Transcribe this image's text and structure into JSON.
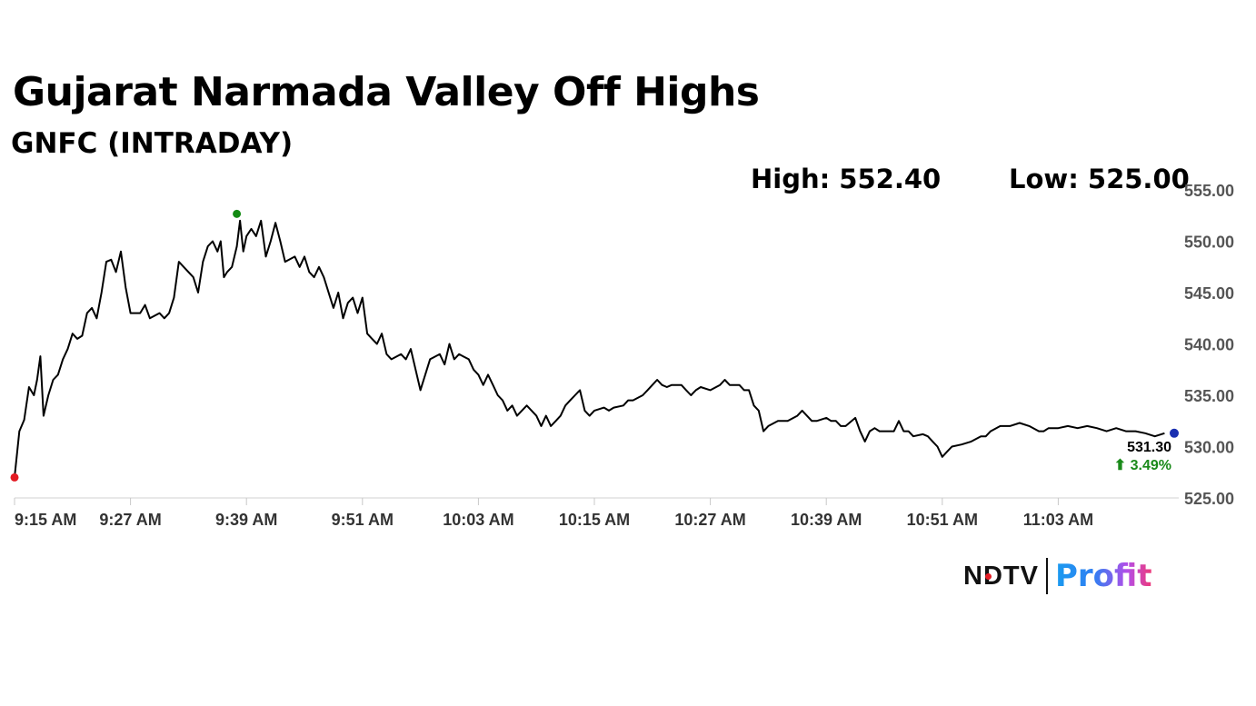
{
  "header": {
    "title": "Gujarat Narmada Valley Off Highs",
    "subtitle": "GNFC (INTRADAY)"
  },
  "stats": {
    "high_label": "High: 552.40",
    "low_label": "Low: 525.00"
  },
  "last": {
    "price_label": "531.30",
    "change_label": "⬆ 3.49%"
  },
  "logo": {
    "brand": "NDTV",
    "product": "Profit",
    "brand_dot_icon": "red-dot-icon"
  },
  "colors": {
    "line": "#000000",
    "high_marker": "#138a13",
    "low_marker": "#e31b23",
    "last_marker": "#1a2fb0",
    "change_up": "#1a8a1a"
  },
  "chart_data": {
    "type": "line",
    "title": "Gujarat Narmada Valley Off Highs",
    "subtitle": "GNFC (INTRADAY)",
    "ylim": [
      525,
      555
    ],
    "y_ticks": [
      "555.00",
      "550.00",
      "545.00",
      "540.00",
      "535.00",
      "530.00",
      "525.00"
    ],
    "y_tick_values": [
      555,
      550,
      545,
      540,
      535,
      530,
      525
    ],
    "x_ticks": [
      "9:15 AM",
      "9:27 AM",
      "9:39 AM",
      "9:51 AM",
      "10:03 AM",
      "10:15 AM",
      "10:27 AM",
      "10:39 AM",
      "10:51 AM",
      "11:03 AM"
    ],
    "x_tick_times": [
      "9:15",
      "9:27",
      "9:39",
      "9:51",
      "10:03",
      "10:15",
      "10:27",
      "10:39",
      "10:51",
      "11:03"
    ],
    "x_end_time": "11:15",
    "grid": false,
    "series": [
      {
        "points": [
          [
            "9:15",
            527.0
          ],
          [
            "9:15",
            531.5
          ],
          [
            "9:16",
            532.6
          ],
          [
            "9:16",
            535.8
          ],
          [
            "9:17",
            535.0
          ],
          [
            "9:17",
            536.5
          ],
          [
            "9:17",
            538.8
          ],
          [
            "9:18",
            533.0
          ],
          [
            "9:18",
            535.0
          ],
          [
            "9:19",
            536.5
          ],
          [
            "9:19",
            537.0
          ],
          [
            "9:20",
            538.5
          ],
          [
            "9:20",
            539.5
          ],
          [
            "9:21",
            541.0
          ],
          [
            "9:21",
            540.5
          ],
          [
            "9:22",
            540.8
          ],
          [
            "9:22",
            543.0
          ],
          [
            "9:23",
            543.5
          ],
          [
            "9:23",
            542.5
          ],
          [
            "9:24",
            545.0
          ],
          [
            "9:24",
            548.0
          ],
          [
            "9:25",
            548.2
          ],
          [
            "9:25",
            547.0
          ],
          [
            "9:26",
            549.0
          ],
          [
            "9:26",
            545.5
          ],
          [
            "9:27",
            543.0
          ],
          [
            "9:28",
            543.0
          ],
          [
            "9:28",
            543.8
          ],
          [
            "9:29",
            542.5
          ],
          [
            "9:30",
            543.0
          ],
          [
            "9:30",
            542.5
          ],
          [
            "9:31",
            543.0
          ],
          [
            "9:31",
            544.5
          ],
          [
            "9:32",
            548.0
          ],
          [
            "9:33",
            547.0
          ],
          [
            "9:33",
            546.5
          ],
          [
            "9:34",
            545.0
          ],
          [
            "9:34",
            548.0
          ],
          [
            "9:35",
            549.5
          ],
          [
            "9:35",
            550.0
          ],
          [
            "9:36",
            549.0
          ],
          [
            "9:36",
            550.0
          ],
          [
            "9:36",
            546.5
          ],
          [
            "9:37",
            547.0
          ],
          [
            "9:37",
            547.5
          ],
          [
            "9:38",
            549.5
          ],
          [
            "9:38",
            552.0
          ],
          [
            "9:38",
            549.0
          ],
          [
            "9:39",
            550.5
          ],
          [
            "9:39",
            551.2
          ],
          [
            "9:40",
            550.5
          ],
          [
            "9:40",
            552.0
          ],
          [
            "9:41",
            548.5
          ],
          [
            "9:41",
            550.0
          ],
          [
            "9:42",
            551.8
          ],
          [
            "9:42",
            550.0
          ],
          [
            "9:43",
            548.0
          ],
          [
            "9:44",
            548.5
          ],
          [
            "9:44",
            547.5
          ],
          [
            "9:45",
            548.5
          ],
          [
            "9:45",
            547.0
          ],
          [
            "9:46",
            546.5
          ],
          [
            "9:46",
            547.5
          ],
          [
            "9:47",
            546.5
          ],
          [
            "9:48",
            543.5
          ],
          [
            "9:48",
            545.0
          ],
          [
            "9:49",
            542.5
          ],
          [
            "9:49",
            544.0
          ],
          [
            "9:50",
            544.5
          ],
          [
            "9:50",
            543.0
          ],
          [
            "9:51",
            544.5
          ],
          [
            "9:51",
            541.0
          ],
          [
            "9:52",
            540.5
          ],
          [
            "9:52",
            540.0
          ],
          [
            "9:53",
            541.0
          ],
          [
            "9:53",
            539.0
          ],
          [
            "9:54",
            538.5
          ],
          [
            "9:55",
            539.0
          ],
          [
            "9:55",
            538.5
          ],
          [
            "9:56",
            539.5
          ],
          [
            "9:56",
            537.5
          ],
          [
            "9:57",
            535.5
          ],
          [
            "9:57",
            537.0
          ],
          [
            "9:58",
            538.5
          ],
          [
            "9:59",
            539.0
          ],
          [
            "9:59",
            538.0
          ],
          [
            "10:00",
            540.0
          ],
          [
            "10:00",
            538.5
          ],
          [
            "10:01",
            539.0
          ],
          [
            "10:02",
            538.5
          ],
          [
            "10:02",
            537.5
          ],
          [
            "10:03",
            537.0
          ],
          [
            "10:03",
            536.0
          ],
          [
            "10:04",
            537.0
          ],
          [
            "10:04",
            536.0
          ],
          [
            "10:05",
            535.0
          ],
          [
            "10:05",
            534.5
          ],
          [
            "10:06",
            533.5
          ],
          [
            "10:06",
            534.0
          ],
          [
            "10:07",
            533.0
          ],
          [
            "10:08",
            534.0
          ],
          [
            "10:08",
            533.5
          ],
          [
            "10:09",
            533.0
          ],
          [
            "10:09",
            532.0
          ],
          [
            "10:10",
            533.0
          ],
          [
            "10:10",
            532.0
          ],
          [
            "10:11",
            532.5
          ],
          [
            "10:11",
            533.0
          ],
          [
            "10:12",
            534.0
          ],
          [
            "10:12",
            534.5
          ],
          [
            "10:13",
            535.0
          ],
          [
            "10:13",
            535.5
          ],
          [
            "10:14",
            533.5
          ],
          [
            "10:14",
            533.0
          ],
          [
            "10:15",
            533.5
          ],
          [
            "10:16",
            533.8
          ],
          [
            "10:16",
            533.5
          ],
          [
            "10:17",
            533.8
          ],
          [
            "10:18",
            534.0
          ],
          [
            "10:18",
            534.5
          ],
          [
            "10:19",
            534.5
          ],
          [
            "10:20",
            535.0
          ],
          [
            "10:20",
            535.5
          ],
          [
            "10:21",
            536.0
          ],
          [
            "10:21",
            536.5
          ],
          [
            "10:22",
            536.0
          ],
          [
            "10:22",
            535.8
          ],
          [
            "10:23",
            536.0
          ],
          [
            "10:24",
            536.0
          ],
          [
            "10:24",
            535.5
          ],
          [
            "10:25",
            535.0
          ],
          [
            "10:25",
            535.5
          ],
          [
            "10:26",
            535.8
          ],
          [
            "10:27",
            535.5
          ],
          [
            "10:28",
            536.0
          ],
          [
            "10:28",
            536.5
          ],
          [
            "10:29",
            536.0
          ],
          [
            "10:30",
            536.0
          ],
          [
            "10:30",
            535.5
          ],
          [
            "10:31",
            535.5
          ],
          [
            "10:31",
            534.0
          ],
          [
            "10:32",
            533.5
          ],
          [
            "10:32",
            531.5
          ],
          [
            "10:33",
            532.0
          ],
          [
            "10:34",
            532.5
          ],
          [
            "10:34",
            532.5
          ],
          [
            "10:35",
            532.5
          ],
          [
            "10:36",
            533.0
          ],
          [
            "10:36",
            533.5
          ],
          [
            "10:37",
            533.0
          ],
          [
            "10:37",
            532.5
          ],
          [
            "10:38",
            532.5
          ],
          [
            "10:39",
            532.8
          ],
          [
            "10:39",
            532.5
          ],
          [
            "10:40",
            532.5
          ],
          [
            "10:40",
            532.0
          ],
          [
            "10:41",
            532.0
          ],
          [
            "10:42",
            532.8
          ],
          [
            "10:42",
            531.5
          ],
          [
            "10:43",
            530.5
          ],
          [
            "10:43",
            531.5
          ],
          [
            "10:44",
            531.8
          ],
          [
            "10:44",
            531.5
          ],
          [
            "10:45",
            531.5
          ],
          [
            "10:46",
            531.5
          ],
          [
            "10:46",
            532.5
          ],
          [
            "10:47",
            531.5
          ],
          [
            "10:47",
            531.5
          ],
          [
            "10:48",
            531.0
          ],
          [
            "10:49",
            531.2
          ],
          [
            "10:49",
            531.0
          ],
          [
            "10:50",
            530.5
          ],
          [
            "10:50",
            530.0
          ],
          [
            "10:51",
            529.0
          ],
          [
            "10:51",
            529.5
          ],
          [
            "10:52",
            530.0
          ],
          [
            "10:53",
            530.2
          ],
          [
            "10:54",
            530.5
          ],
          [
            "10:55",
            531.0
          ],
          [
            "10:55",
            531.0
          ],
          [
            "10:56",
            531.5
          ],
          [
            "10:57",
            532.0
          ],
          [
            "10:58",
            532.0
          ],
          [
            "10:59",
            532.3
          ],
          [
            "11:00",
            532.0
          ],
          [
            "11:01",
            531.5
          ],
          [
            "11:01",
            531.5
          ],
          [
            "11:02",
            531.8
          ],
          [
            "11:03",
            531.8
          ],
          [
            "11:04",
            532.0
          ],
          [
            "11:05",
            531.8
          ],
          [
            "11:06",
            532.0
          ],
          [
            "11:07",
            531.8
          ],
          [
            "11:08",
            531.5
          ],
          [
            "11:09",
            531.8
          ],
          [
            "11:10",
            531.5
          ],
          [
            "11:11",
            531.5
          ],
          [
            "11:12",
            531.3
          ],
          [
            "11:13",
            531.0
          ],
          [
            "11:14",
            531.3
          ]
        ]
      }
    ],
    "markers": {
      "high": {
        "time": "9:38",
        "value": 552.4
      },
      "low": {
        "time": "9:15",
        "value": 525.0
      },
      "last": {
        "time": "11:14",
        "value": 531.3
      }
    }
  }
}
